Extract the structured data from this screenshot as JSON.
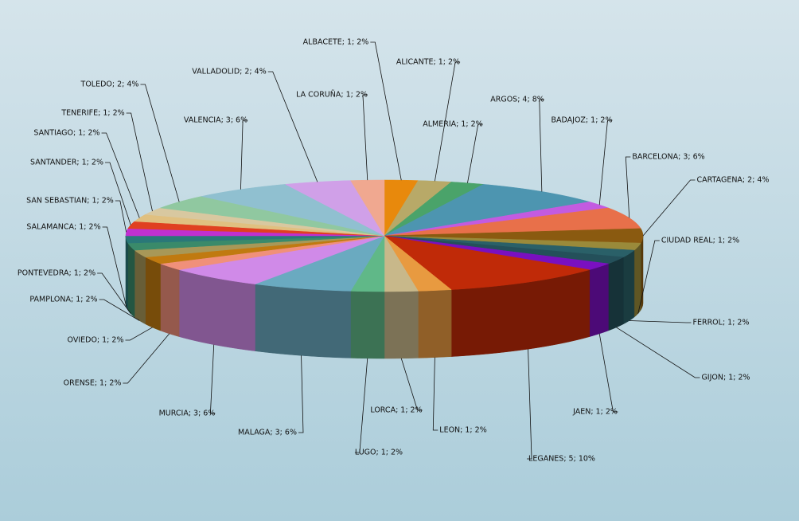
{
  "chart_data": {
    "type": "pie3d",
    "categories": [
      "ALBACETE; 1; 2%",
      "ALICANTE; 1; 2%",
      "ALMERIA; 1; 2%",
      "ARGOS; 4; 8%",
      "BADAJOZ; 1; 2%",
      "BARCELONA; 3; 6%",
      "CARTAGENA; 2; 4%",
      "CIUDAD REAL; 1; 2%",
      "FERROL; 1; 2%",
      "GIJON; 1; 2%",
      "JAEN; 1; 2%",
      "LEGANES; 5; 10%",
      "LEON; 1; 2%",
      "LORCA; 1; 2%",
      "LUGO; 1; 2%",
      "MALAGA; 3; 6%",
      "MURCIA; 3; 6%",
      "ORENSE; 1; 2%",
      "OVIEDO; 1; 2%",
      "PAMPLONA; 1; 2%",
      "PONTEVEDRA; 1; 2%",
      "SALAMANCA; 1; 2%",
      "SAN SEBASTIAN; 1; 2%",
      "SANTANDER; 1; 2%",
      "SANTIAGO; 1; 2%",
      "TENERIFE; 1; 2%",
      "TOLEDO; 2; 4%",
      "VALENCIA; 3; 6%",
      "VALLADOLID; 2; 4%",
      "LA CORUÑA; 1; 2%"
    ],
    "values": [
      1,
      1,
      1,
      4,
      1,
      3,
      2,
      1,
      1,
      1,
      1,
      5,
      1,
      1,
      1,
      3,
      3,
      1,
      1,
      1,
      1,
      1,
      1,
      1,
      1,
      1,
      2,
      3,
      2,
      1
    ],
    "colors": [
      "#e8890c",
      "#b8a968",
      "#4aa36a",
      "#4d95b0",
      "#c35be0",
      "#e8704a",
      "#8a5a10",
      "#9a8a3a",
      "#2a6068",
      "#24505a",
      "#7a10c0",
      "#c02a08",
      "#e89a40",
      "#c8b88a",
      "#60b888",
      "#6aaac0",
      "#d08ae8",
      "#f0907a",
      "#c07a10",
      "#a89858",
      "#3a8a6a",
      "#2a7878",
      "#c030d0",
      "#e04020",
      "#e0c080",
      "#d8c8a0",
      "#90c8a0",
      "#90c0d0",
      "#d0a0e8",
      "#f0a890"
    ]
  }
}
